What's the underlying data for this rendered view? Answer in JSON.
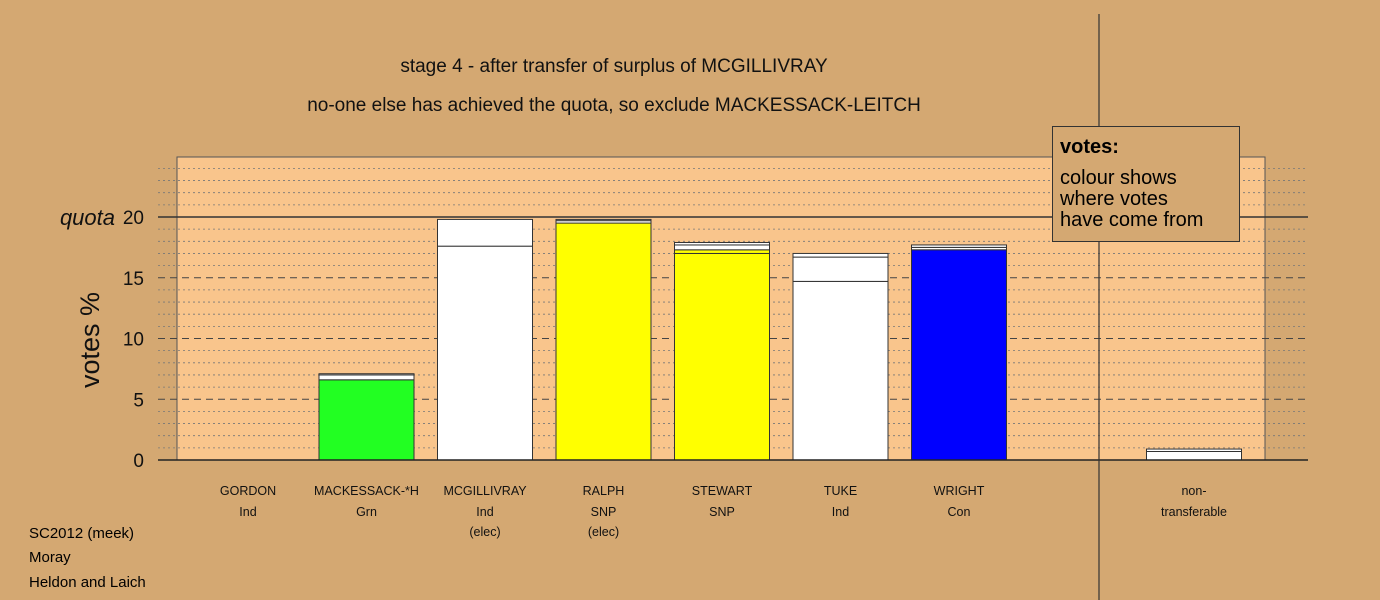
{
  "chart_data": {
    "type": "bar",
    "title": "stage 4 - after transfer of surplus of MCGILLIVRAY",
    "subtitle": "no-one else has achieved the quota, so exclude MACKESSACK-LEITCH",
    "ylabel": "votes %",
    "quota_label": "quota",
    "quota": 20,
    "ylim": [
      0,
      25
    ],
    "yticks": [
      0,
      5,
      10,
      15,
      20
    ],
    "grid": true,
    "stacked": true,
    "categories": [
      {
        "name": "GORDON",
        "party": "Ind",
        "status": ""
      },
      {
        "name": "MACKESSACK-*H",
        "party": "Grn",
        "status": ""
      },
      {
        "name": "MCGILLIVRAY",
        "party": "Ind",
        "status": "(elec)"
      },
      {
        "name": "RALPH",
        "party": "SNP",
        "status": "(elec)"
      },
      {
        "name": "STEWART",
        "party": "SNP",
        "status": ""
      },
      {
        "name": "TUKE",
        "party": "Ind",
        "status": ""
      },
      {
        "name": "WRIGHT",
        "party": "Con",
        "status": ""
      },
      {
        "name": "non-",
        "party": "transferable",
        "status": ""
      }
    ],
    "segments": [
      [],
      [
        {
          "value": 6.6,
          "color": "#22ff22"
        },
        {
          "value": 0.4,
          "color": "#ffffff"
        },
        {
          "value": 0.1,
          "color": "#ffffff"
        }
      ],
      [
        {
          "value": 17.6,
          "color": "#ffffff"
        },
        {
          "value": 2.2,
          "color": "#ffffff"
        }
      ],
      [
        {
          "value": 19.5,
          "color": "#ffff00"
        },
        {
          "value": 0.2,
          "color": "#ffffff"
        },
        {
          "value": 0.1,
          "color": "#ffffff"
        }
      ],
      [
        {
          "value": 17.0,
          "color": "#ffff00"
        },
        {
          "value": 0.3,
          "color": "#ffff00"
        },
        {
          "value": 0.4,
          "color": "#ffffff"
        },
        {
          "value": 0.2,
          "color": "#ffffff"
        }
      ],
      [
        {
          "value": 14.7,
          "color": "#ffffff"
        },
        {
          "value": 2.0,
          "color": "#ffffff"
        },
        {
          "value": 0.3,
          "color": "#ffffff"
        }
      ],
      [
        {
          "value": 17.3,
          "color": "#0000ff"
        },
        {
          "value": 0.2,
          "color": "#ffffff"
        },
        {
          "value": 0.2,
          "color": "#ffffff"
        }
      ],
      [
        {
          "value": 0.7,
          "color": "#ffffff"
        },
        {
          "value": 0.2,
          "color": "#ffffff"
        }
      ]
    ],
    "legend": {
      "title": "votes:",
      "lines": [
        "colour shows",
        "where votes",
        "have come from"
      ],
      "placement": "top-right"
    }
  },
  "footer": {
    "line1": "SC2012 (meek)",
    "line2": "Moray",
    "line3": "Heldon and Laich"
  }
}
